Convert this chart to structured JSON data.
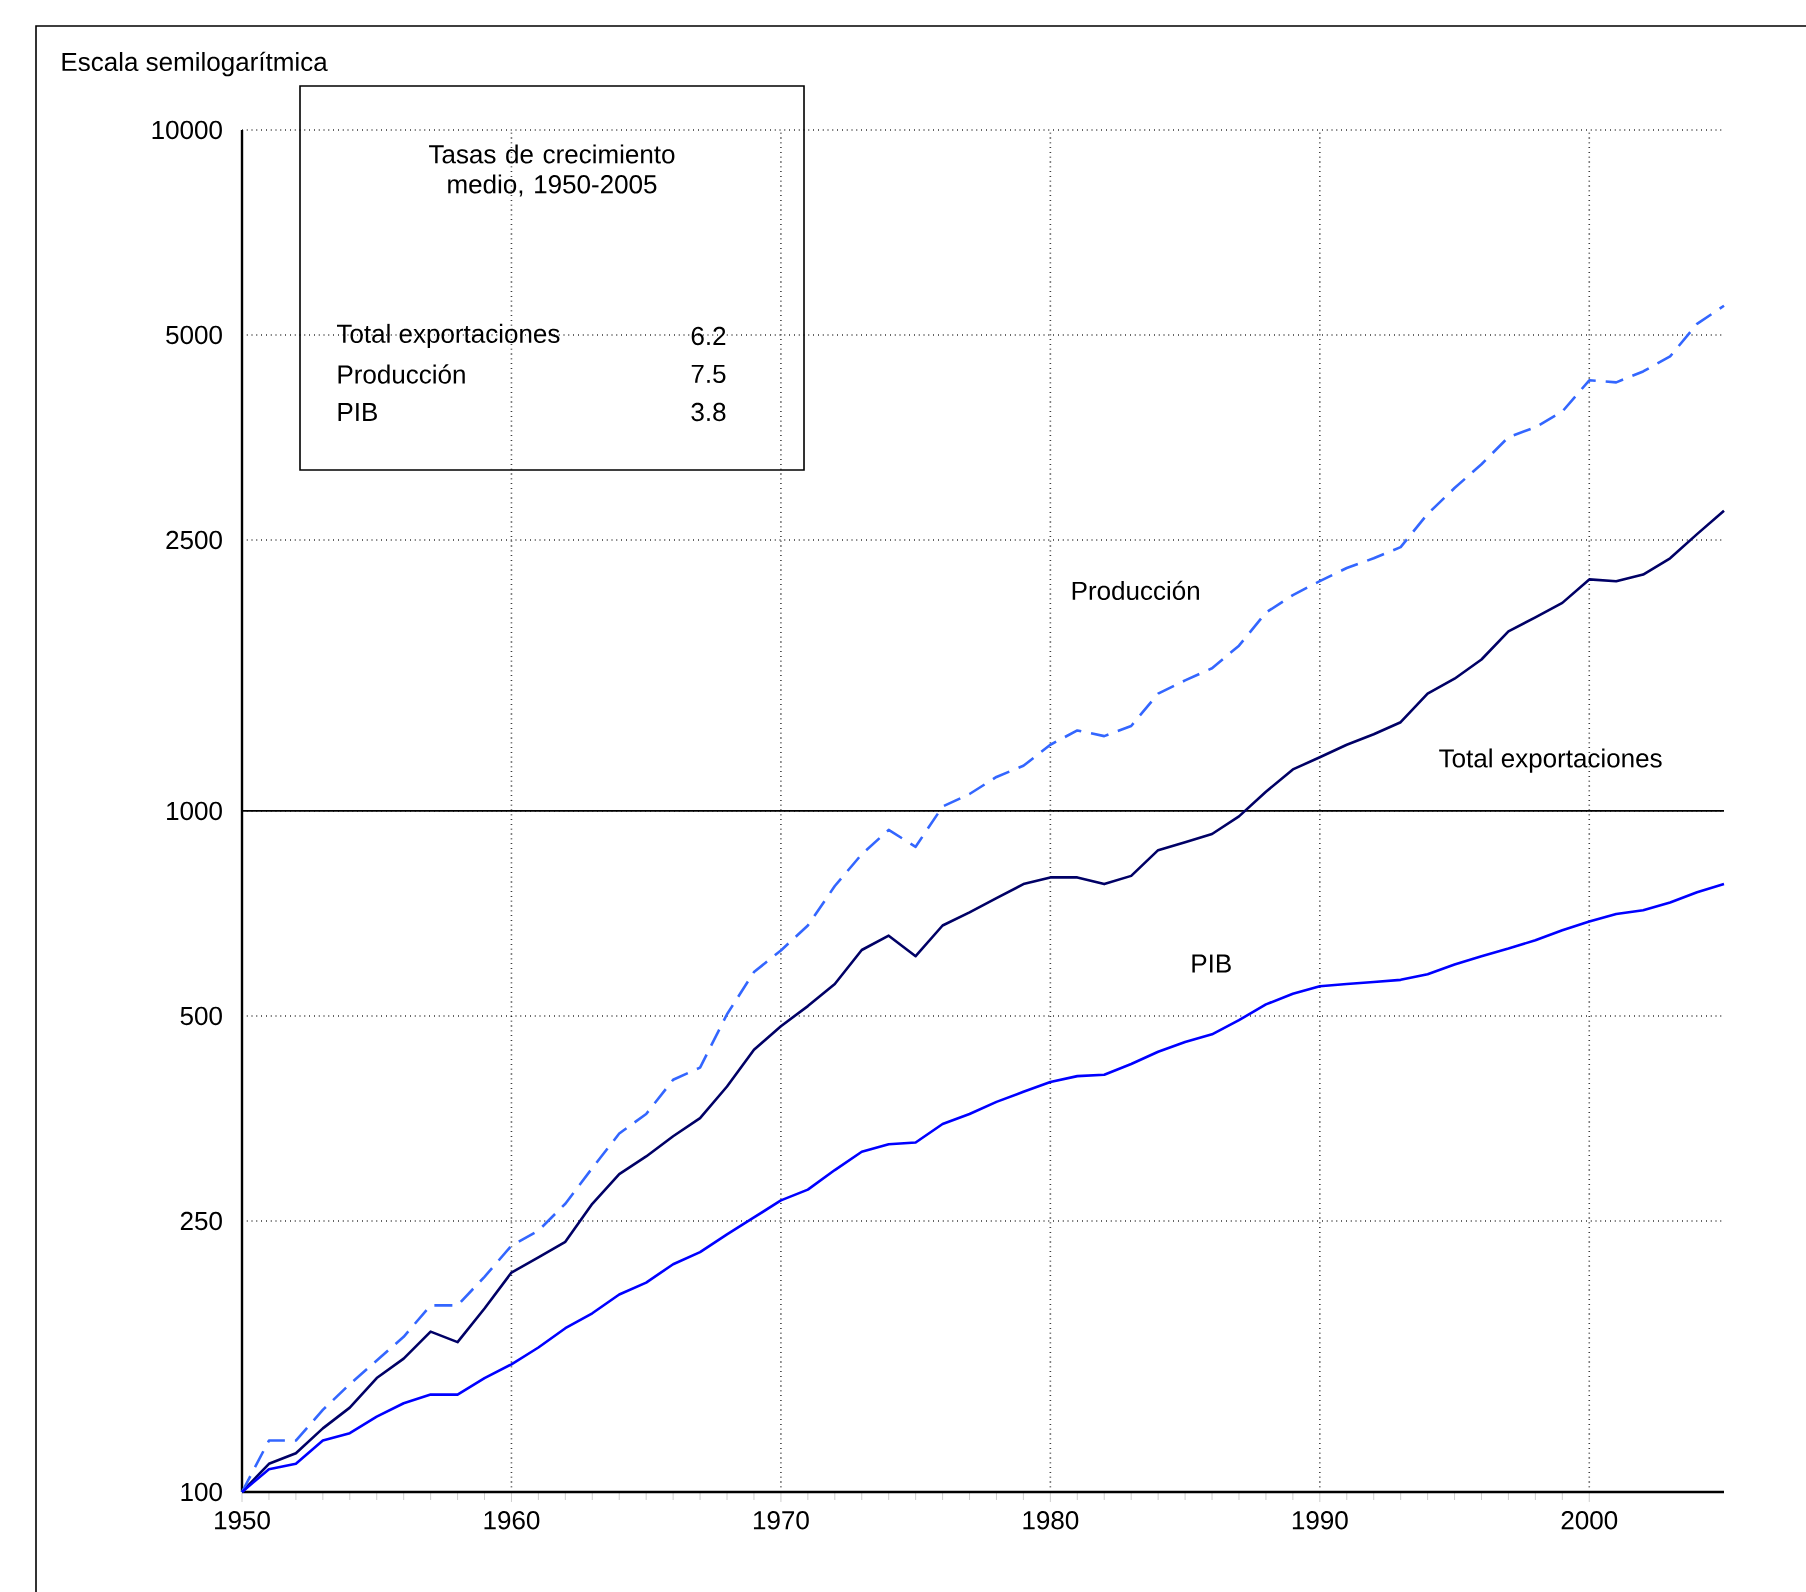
{
  "chart_data": {
    "type": "line",
    "ylabel": "Escala semilogarítmica",
    "log": "y",
    "grid": true,
    "legend": false,
    "xlim": [
      1950,
      2005
    ],
    "ylim": [
      100,
      10000
    ],
    "xticks": [
      1950,
      1960,
      1970,
      1980,
      1990,
      2000
    ],
    "yticks": [
      100,
      250,
      500,
      1000,
      2500,
      5000,
      10000
    ],
    "x": [
      1950,
      1951,
      1952,
      1953,
      1954,
      1955,
      1956,
      1957,
      1958,
      1959,
      1960,
      1961,
      1962,
      1963,
      1964,
      1965,
      1966,
      1967,
      1968,
      1969,
      1970,
      1971,
      1972,
      1973,
      1974,
      1975,
      1976,
      1977,
      1978,
      1979,
      1980,
      1981,
      1982,
      1983,
      1984,
      1985,
      1986,
      1987,
      1988,
      1989,
      1990,
      1991,
      1992,
      1993,
      1994,
      1995,
      1996,
      1997,
      1998,
      1999,
      2000,
      2001,
      2002,
      2003,
      2004,
      2005
    ],
    "ref_lines": [
      {
        "axis": "y",
        "value": 1000,
        "color": "#000000",
        "line_style": "solid"
      }
    ],
    "series": [
      {
        "name": "Total exportaciones",
        "color": "#000066",
        "line_style": "solid",
        "values": [
          100,
          110,
          114,
          124,
          133,
          147,
          157,
          172,
          166,
          186,
          210,
          221,
          233,
          265,
          293,
          311,
          333,
          354,
          394,
          446,
          483,
          517,
          557,
          625,
          656,
          612,
          679,
          710,
          745,
          781,
          799,
          799,
          781,
          803,
          876,
          900,
          925,
          982,
          1067,
          1151,
          1199,
          1251,
          1296,
          1350,
          1487,
          1564,
          1669,
          1835,
          1925,
          2021,
          2188,
          2175,
          2224,
          2350,
          2550,
          2760
        ]
      },
      {
        "name": "Producción",
        "color": "#3366ff",
        "line_style": "dashed",
        "values": [
          100,
          119,
          119,
          132,
          144,
          156,
          169,
          188,
          188,
          207,
          230,
          242,
          265,
          299,
          336,
          359,
          403,
          420,
          503,
          580,
          624,
          679,
          776,
          864,
          938,
          886,
          1015,
          1059,
          1122,
          1165,
          1251,
          1313,
          1288,
          1333,
          1487,
          1555,
          1620,
          1749,
          1956,
          2075,
          2175,
          2274,
          2350,
          2440,
          2730,
          2980,
          3230,
          3540,
          3660,
          3860,
          4290,
          4260,
          4420,
          4650,
          5190,
          5520
        ]
      },
      {
        "name": "PIB",
        "color": "#0000ff",
        "line_style": "solid",
        "values": [
          100,
          108,
          110,
          119,
          122,
          129,
          135,
          139,
          139,
          147,
          154,
          163,
          174,
          183,
          195,
          203,
          216,
          225,
          239,
          253,
          268,
          278,
          297,
          316,
          324,
          326,
          347,
          359,
          374,
          387,
          400,
          408,
          410,
          425,
          443,
          458,
          470,
          493,
          520,
          539,
          553,
          557,
          561,
          565,
          576,
          595,
          612,
          628,
          646,
          668,
          688,
          706,
          715,
          734,
          760,
          781
        ]
      }
    ],
    "annotations": [
      "Tasas de crecimiento medio, 1950-2005",
      "Total exportaciones",
      "6.2",
      "Producción",
      "7.5",
      "PIB",
      "3.8"
    ]
  }
}
